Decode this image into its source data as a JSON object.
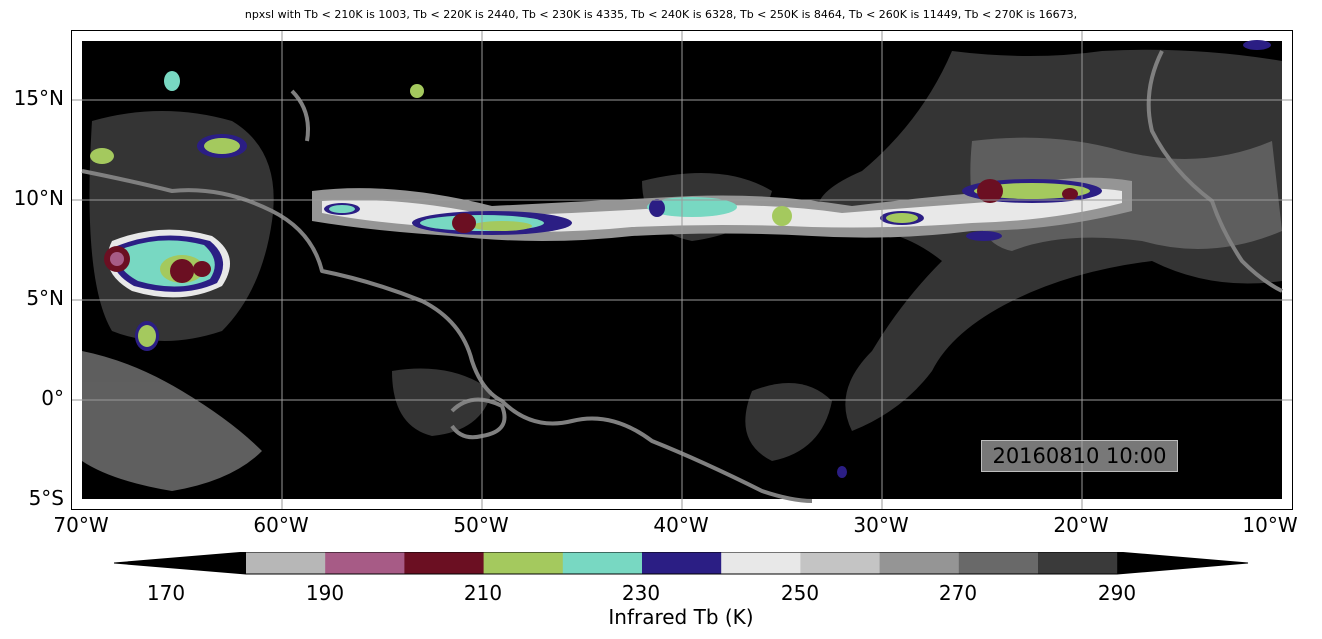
{
  "title": "npxsl with Tb < 210K is 1003,  Tb < 220K is 2440,  Tb < 230K is 4335,  Tb < 240K is 6328,  Tb < 250K is 8464,  Tb < 260K is 11449,  Tb < 270K is 16673,",
  "map": {
    "lat_labels": [
      "15°N",
      "10°N",
      "5°N",
      "0°",
      "5°S"
    ],
    "lon_labels": [
      "70°W",
      "60°W",
      "50°W",
      "40°W",
      "30°W",
      "20°W",
      "10°W"
    ],
    "lat_range": [
      -5.5,
      18
    ],
    "lon_range": [
      -70.5,
      -9.5
    ],
    "timestamp": "20160810 10:00",
    "gridlines": true,
    "background_color": "#000000",
    "coastline_color": "#808080"
  },
  "colorbar": {
    "label": "Infrared Tb (K)",
    "tick_labels": [
      "170",
      "190",
      "210",
      "230",
      "250",
      "270",
      "290"
    ],
    "bins": [
      {
        "min": 170,
        "max": 180,
        "color": "#000000"
      },
      {
        "min": 180,
        "max": 190,
        "color": "#b7b7b7"
      },
      {
        "min": 190,
        "max": 200,
        "color": "#a75b86"
      },
      {
        "min": 200,
        "max": 210,
        "color": "#6b0f22"
      },
      {
        "min": 210,
        "max": 220,
        "color": "#a4c95e"
      },
      {
        "min": 220,
        "max": 230,
        "color": "#78d8c2"
      },
      {
        "min": 230,
        "max": 240,
        "color": "#2b1e84"
      },
      {
        "min": 240,
        "max": 250,
        "color": "#e8e8e8"
      },
      {
        "min": 250,
        "max": 260,
        "color": "#c4c4c4"
      },
      {
        "min": 260,
        "max": 270,
        "color": "#959595"
      },
      {
        "min": 270,
        "max": 280,
        "color": "#696969"
      },
      {
        "min": 280,
        "max": 290,
        "color": "#3a3a3a"
      },
      {
        "min": 290,
        "max": 300,
        "color": "#000000"
      }
    ],
    "extend": "both"
  }
}
